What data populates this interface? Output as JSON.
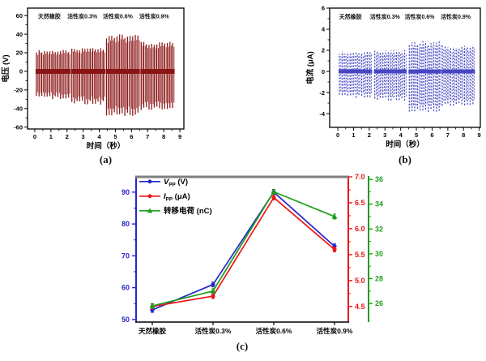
{
  "figure": {
    "background": "#ffffff",
    "captions": {
      "a": "(a)",
      "b": "(b)",
      "c": "(c)"
    }
  },
  "chart_data": [
    {
      "id": "a",
      "type": "spike-train",
      "title": "",
      "xlabel": "时间（秒）",
      "ylabel": "电压 (V)",
      "xlim": [
        -0.45,
        9.25
      ],
      "ylim": [
        -62,
        68
      ],
      "xticks": [
        0,
        1,
        2,
        3,
        4,
        5,
        6,
        7,
        8,
        9
      ],
      "yticks": [
        -60,
        -40,
        -20,
        0,
        20,
        40,
        60
      ],
      "line_color": "#8b1515",
      "grid": false,
      "annotations": [
        {
          "text": "天然橡胶",
          "x": 0.9,
          "y": 57
        },
        {
          "text": "活性炭0.3%",
          "x": 2.95,
          "y": 57
        },
        {
          "text": "活性炭0.6%",
          "x": 5.15,
          "y": 57
        },
        {
          "text": "活性炭0.9%",
          "x": 7.4,
          "y": 57
        }
      ],
      "bursts": [
        {
          "material": "天然橡胶",
          "x_start": 0.1,
          "x_end": 2.1,
          "spikes": 13,
          "peak_pos": 23,
          "peak_neg": -30
        },
        {
          "material": "活性炭0.3%",
          "x_start": 2.3,
          "x_end": 4.25,
          "spikes": 13,
          "peak_pos": 25,
          "peak_neg": -36
        },
        {
          "material": "活性炭0.6%",
          "x_start": 4.45,
          "x_end": 6.4,
          "spikes": 13,
          "peak_pos": 40,
          "peak_neg": -50
        },
        {
          "material": "活性炭0.9%",
          "x_start": 6.6,
          "x_end": 8.55,
          "spikes": 13,
          "peak_pos": 32,
          "peak_neg": -42
        }
      ]
    },
    {
      "id": "b",
      "type": "spike-train",
      "title": "",
      "xlabel": "时间（秒）",
      "ylabel": "电流 (μA)",
      "xlim": [
        -0.52,
        9.07
      ],
      "ylim": [
        -5.3,
        6.0
      ],
      "xticks": [
        0,
        1,
        2,
        3,
        4,
        5,
        6,
        7,
        8,
        9
      ],
      "yticks": [
        -4,
        -2,
        0,
        2,
        4,
        6
      ],
      "line_color": "#4747c4",
      "dash": "2.2,1.6",
      "grid": false,
      "annotations": [
        {
          "text": "天然橡胶",
          "x": 0.8,
          "y": 5.0
        },
        {
          "text": "活性炭0.3%",
          "x": 3.0,
          "y": 5.0
        },
        {
          "text": "活性炭0.6%",
          "x": 5.2,
          "y": 5.0
        },
        {
          "text": "活性炭0.9%",
          "x": 7.5,
          "y": 5.0
        }
      ],
      "bursts": [
        {
          "material": "天然橡胶",
          "x_start": 0.1,
          "x_end": 2.05,
          "spikes": 12,
          "peak_pos": 1.9,
          "peak_neg": -2.5
        },
        {
          "material": "活性炭0.3%",
          "x_start": 2.35,
          "x_end": 4.25,
          "spikes": 12,
          "peak_pos": 2.0,
          "peak_neg": -2.8
        },
        {
          "material": "活性炭0.6%",
          "x_start": 4.55,
          "x_end": 6.45,
          "spikes": 12,
          "peak_pos": 2.9,
          "peak_neg": -4.0
        },
        {
          "material": "活性炭0.9%",
          "x_start": 6.65,
          "x_end": 8.6,
          "spikes": 12,
          "peak_pos": 2.5,
          "peak_neg": -3.3
        }
      ]
    },
    {
      "id": "c",
      "type": "line",
      "title": "",
      "categories": [
        "天然橡胶",
        "活性炭0.3%",
        "活性炭0.6%",
        "活性炭0.9%"
      ],
      "series": [
        {
          "name": "Vpp (V)",
          "axis": "left",
          "color": "#2525cc",
          "marker": "circle",
          "values": [
            53,
            61,
            90,
            73
          ]
        },
        {
          "name": "Ipp (μA)",
          "axis": "right",
          "color": "#ee1515",
          "marker": "circle",
          "values": [
            4.5,
            4.7,
            6.6,
            5.6
          ]
        },
        {
          "name": "转移电荷 (nC)",
          "axis": "far_right",
          "color": "#1e9e1e",
          "marker": "triangle",
          "values": [
            25.8,
            27.0,
            35.0,
            33.0
          ]
        }
      ],
      "axes": {
        "left": {
          "range": [
            49.2,
            94.8
          ],
          "ticks": [
            "50",
            "60",
            "70",
            "80",
            "90"
          ],
          "color": "#2525cc"
        },
        "right": {
          "range": [
            4.2,
            7.0
          ],
          "ticks": [
            "4.5",
            "5.0",
            "5.5",
            "6.0",
            "6.5",
            "7.0"
          ],
          "color": "#ee1515"
        },
        "far_right": {
          "range": [
            24.5,
            36.2
          ],
          "ticks": [
            "26",
            "28",
            "30",
            "32",
            "34",
            "36"
          ],
          "color": "#1e9e1e"
        }
      },
      "legend": [
        {
          "pre": "V",
          "sub": "PP",
          "post": " (V)",
          "italic": true,
          "color": "#2525cc",
          "marker": "circle"
        },
        {
          "pre": "I",
          "sub": "PP",
          "post": " (μA)",
          "italic": true,
          "color": "#ee1515",
          "marker": "circle"
        },
        {
          "pre": "转移电荷",
          "sub": "",
          "post": " (nC)",
          "italic": false,
          "color": "#1e9e1e",
          "marker": "triangle"
        }
      ],
      "legend_position": "top-left",
      "top_spine_color": "#7f7f7f"
    }
  ]
}
